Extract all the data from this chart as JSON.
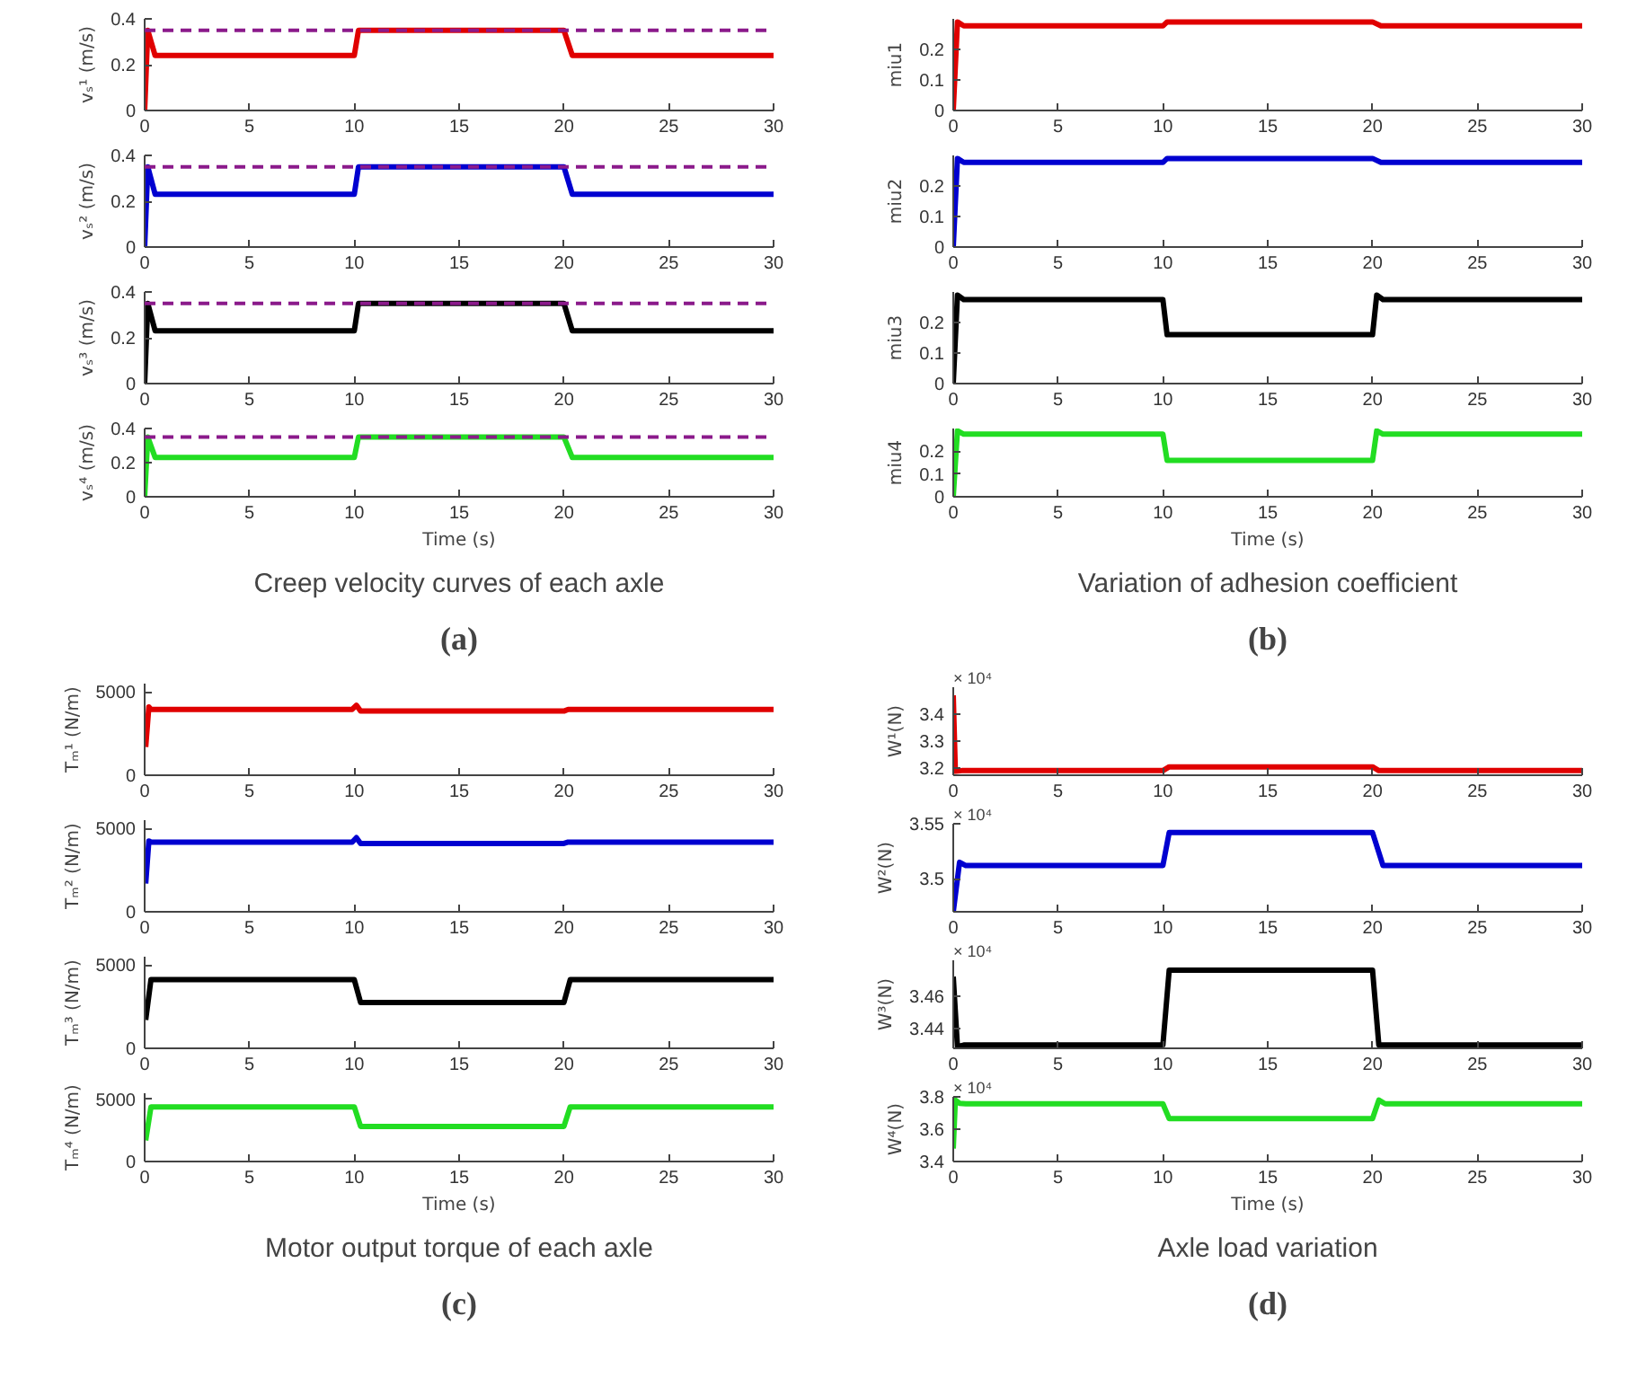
{
  "chart_data": [
    {
      "type": "line",
      "ylabel": "vₛ¹ (m/s)",
      "x": [
        0,
        0.15,
        0.5,
        10,
        10.2,
        20,
        20.4,
        30
      ],
      "series": [
        {
          "color": "#e00000",
          "values": [
            0,
            0.35,
            0.24,
            0.24,
            0.35,
            0.35,
            0.24,
            0.24
          ]
        }
      ],
      "xlim": [
        0,
        30
      ],
      "xticks": [
        0,
        5,
        10,
        15,
        20,
        25,
        30
      ],
      "ylim": [
        0,
        0.4
      ],
      "yticks": [
        0,
        0.2,
        0.4
      ],
      "ref_lines": [
        {
          "axis": "y",
          "value": 0.35,
          "color": "#8b1a8b",
          "line_style": "dashed"
        }
      ]
    },
    {
      "type": "line",
      "ylabel": "vₛ² (m/s)",
      "x": [
        0,
        0.15,
        0.5,
        10,
        10.2,
        20,
        20.4,
        30
      ],
      "series": [
        {
          "color": "#0000d0",
          "values": [
            0,
            0.35,
            0.23,
            0.23,
            0.35,
            0.35,
            0.23,
            0.23
          ]
        }
      ],
      "xlim": [
        0,
        30
      ],
      "xticks": [
        0,
        5,
        10,
        15,
        20,
        25,
        30
      ],
      "ylim": [
        0,
        0.4
      ],
      "yticks": [
        0,
        0.2,
        0.4
      ],
      "ref_lines": [
        {
          "axis": "y",
          "value": 0.35,
          "color": "#8b1a8b",
          "line_style": "dashed"
        }
      ]
    },
    {
      "type": "line",
      "ylabel": "vₛ³ (m/s)",
      "x": [
        0,
        0.15,
        0.5,
        10,
        10.2,
        20,
        20.4,
        30
      ],
      "series": [
        {
          "color": "#000000",
          "values": [
            0,
            0.35,
            0.23,
            0.23,
            0.35,
            0.35,
            0.23,
            0.23
          ]
        }
      ],
      "xlim": [
        0,
        30
      ],
      "xticks": [
        0,
        5,
        10,
        15,
        20,
        25,
        30
      ],
      "ylim": [
        0,
        0.4
      ],
      "yticks": [
        0,
        0.2,
        0.4
      ],
      "ref_lines": [
        {
          "axis": "y",
          "value": 0.35,
          "color": "#8b1a8b",
          "line_style": "dashed"
        }
      ]
    },
    {
      "type": "line",
      "ylabel": "vₛ⁴ (m/s)",
      "xlabel": "Time (s)",
      "subtitle": "Creep velocity curves of each axle",
      "title": "(a)",
      "x": [
        0,
        0.15,
        0.5,
        10,
        10.2,
        20,
        20.4,
        30
      ],
      "series": [
        {
          "color": "#22dd22",
          "values": [
            0,
            0.35,
            0.23,
            0.23,
            0.35,
            0.35,
            0.23,
            0.23
          ]
        }
      ],
      "xlim": [
        0,
        30
      ],
      "xticks": [
        0,
        5,
        10,
        15,
        20,
        25,
        30
      ],
      "ylim": [
        0,
        0.4
      ],
      "yticks": [
        0,
        0.2,
        0.4
      ],
      "ref_lines": [
        {
          "axis": "y",
          "value": 0.35,
          "color": "#8b1a8b",
          "line_style": "dashed"
        }
      ]
    },
    {
      "type": "line",
      "ylabel": "miu1",
      "x": [
        0,
        0.2,
        0.5,
        10,
        10.2,
        20,
        20.4,
        30
      ],
      "series": [
        {
          "color": "#e00000",
          "values": [
            0,
            0.29,
            0.277,
            0.277,
            0.29,
            0.29,
            0.277,
            0.277
          ]
        }
      ],
      "xlim": [
        0,
        30
      ],
      "xticks": [
        0,
        5,
        10,
        15,
        20,
        25,
        30
      ],
      "ylim": [
        0,
        0.3
      ],
      "yticks": [
        0,
        0.1,
        0.2
      ]
    },
    {
      "type": "line",
      "ylabel": "miu2",
      "x": [
        0,
        0.2,
        0.5,
        10,
        10.2,
        20,
        20.4,
        30
      ],
      "series": [
        {
          "color": "#0000d0",
          "values": [
            0,
            0.29,
            0.277,
            0.277,
            0.29,
            0.29,
            0.277,
            0.277
          ]
        }
      ],
      "xlim": [
        0,
        30
      ],
      "xticks": [
        0,
        5,
        10,
        15,
        20,
        25,
        30
      ],
      "ylim": [
        0,
        0.3
      ],
      "yticks": [
        0,
        0.1,
        0.2
      ]
    },
    {
      "type": "line",
      "ylabel": "miu3",
      "x": [
        0,
        0.2,
        0.5,
        10,
        10.2,
        20,
        20.2,
        20.5,
        30
      ],
      "series": [
        {
          "color": "#000000",
          "values": [
            0,
            0.29,
            0.275,
            0.275,
            0.16,
            0.16,
            0.29,
            0.275,
            0.275
          ]
        }
      ],
      "xlim": [
        0,
        30
      ],
      "xticks": [
        0,
        5,
        10,
        15,
        20,
        25,
        30
      ],
      "ylim": [
        0,
        0.3
      ],
      "yticks": [
        0,
        0.1,
        0.2
      ]
    },
    {
      "type": "line",
      "ylabel": "miu4",
      "xlabel": "Time (s)",
      "subtitle": "Variation of adhesion coefficient",
      "title": "(b)",
      "x": [
        0,
        0.2,
        0.5,
        10,
        10.2,
        20,
        20.2,
        20.5,
        30
      ],
      "series": [
        {
          "color": "#22dd22",
          "values": [
            0,
            0.29,
            0.275,
            0.275,
            0.16,
            0.16,
            0.29,
            0.275,
            0.275
          ]
        }
      ],
      "xlim": [
        0,
        30
      ],
      "xticks": [
        0,
        5,
        10,
        15,
        20,
        25,
        30
      ],
      "ylim": [
        0,
        0.3
      ],
      "yticks": [
        0,
        0.1,
        0.2
      ]
    },
    {
      "type": "line",
      "ylabel": "Tₘ¹ (N/m)",
      "x": [
        0.05,
        0.2,
        0.3,
        9.9,
        10.1,
        10.3,
        20,
        20.2,
        30
      ],
      "series": [
        {
          "color": "#e00000",
          "values": [
            1700,
            4100,
            3950,
            3950,
            4200,
            3850,
            3850,
            3950,
            3950
          ]
        }
      ],
      "xlim": [
        0,
        30
      ],
      "xticks": [
        0,
        5,
        10,
        15,
        20,
        25,
        30
      ],
      "ylim": [
        0,
        5500
      ],
      "yticks": [
        0,
        5000
      ]
    },
    {
      "type": "line",
      "ylabel": "Tₘ² (N/m)",
      "x": [
        0.05,
        0.2,
        0.3,
        9.9,
        10.1,
        10.3,
        20,
        20.2,
        30
      ],
      "series": [
        {
          "color": "#0000d0",
          "values": [
            1700,
            4250,
            4180,
            4180,
            4450,
            4100,
            4100,
            4180,
            4180
          ]
        }
      ],
      "xlim": [
        0,
        30
      ],
      "xticks": [
        0,
        5,
        10,
        15,
        20,
        25,
        30
      ],
      "ylim": [
        0,
        5500
      ],
      "yticks": [
        0,
        5000
      ]
    },
    {
      "type": "line",
      "ylabel": "Tₘ³ (N/m)",
      "x": [
        0.05,
        0.3,
        10,
        10.3,
        20,
        20.3,
        30
      ],
      "series": [
        {
          "color": "#000000",
          "values": [
            1700,
            4120,
            4120,
            2750,
            2750,
            4120,
            4120
          ]
        }
      ],
      "xlim": [
        0,
        30
      ],
      "xticks": [
        0,
        5,
        10,
        15,
        20,
        25,
        30
      ],
      "ylim": [
        0,
        5500
      ],
      "yticks": [
        0,
        5000
      ]
    },
    {
      "type": "line",
      "ylabel": "Tₘ⁴ (N/m)",
      "xlabel": "Time (s)",
      "subtitle": "Motor output torque of each axle",
      "title": "(c)",
      "x": [
        0.05,
        0.3,
        10,
        10.3,
        20,
        20.3,
        30
      ],
      "series": [
        {
          "color": "#22dd22",
          "values": [
            1700,
            4400,
            4400,
            2830,
            2830,
            4400,
            4400
          ]
        }
      ],
      "xlim": [
        0,
        30
      ],
      "xticks": [
        0,
        5,
        10,
        15,
        20,
        25,
        30
      ],
      "ylim": [
        0,
        5500
      ],
      "yticks": [
        0,
        5000
      ]
    },
    {
      "type": "line",
      "ylabel": "W¹(N)",
      "annotations": [
        "× 10⁴"
      ],
      "x": [
        0,
        0.1,
        0.4,
        10,
        10.3,
        20,
        20.3,
        30
      ],
      "series": [
        {
          "color": "#e00000",
          "values": [
            3.47,
            3.19,
            3.192,
            3.192,
            3.206,
            3.206,
            3.192,
            3.192
          ]
        }
      ],
      "xlim": [
        0,
        30
      ],
      "xticks": [
        0,
        5,
        10,
        15,
        20,
        25,
        30
      ],
      "ylim": [
        3.175,
        3.5
      ],
      "yticks": [
        3.2,
        3.3,
        3.4
      ]
    },
    {
      "type": "line",
      "ylabel": "W²(N)",
      "annotations": [
        "× 10⁴"
      ],
      "x": [
        0,
        0.3,
        0.6,
        10,
        10.3,
        20,
        20.5,
        30
      ],
      "series": [
        {
          "color": "#0000d0",
          "values": [
            3.47,
            3.515,
            3.512,
            3.512,
            3.542,
            3.542,
            3.512,
            3.512
          ]
        }
      ],
      "xlim": [
        0,
        30
      ],
      "xticks": [
        0,
        5,
        10,
        15,
        20,
        25,
        30
      ],
      "ylim": [
        3.47,
        3.55
      ],
      "yticks": [
        3.5,
        3.55
      ]
    },
    {
      "type": "line",
      "ylabel": "W³(N)",
      "annotations": [
        "× 10⁴"
      ],
      "x": [
        0,
        0.2,
        0.5,
        10,
        10.3,
        20,
        20.3,
        30
      ],
      "series": [
        {
          "color": "#000000",
          "values": [
            3.472,
            3.429,
            3.43,
            3.43,
            3.476,
            3.476,
            3.43,
            3.43
          ]
        }
      ],
      "xlim": [
        0,
        30
      ],
      "xticks": [
        0,
        5,
        10,
        15,
        20,
        25,
        30
      ],
      "ylim": [
        3.428,
        3.482
      ],
      "yticks": [
        3.44,
        3.46
      ]
    },
    {
      "type": "line",
      "ylabel": "W⁴(N)",
      "annotations": [
        "× 10⁴"
      ],
      "xlabel": "Time (s)",
      "subtitle": "Axle load variation",
      "title": "(d)",
      "x": [
        0,
        0.1,
        0.3,
        0.6,
        10,
        10.3,
        20,
        20.3,
        20.6,
        30
      ],
      "series": [
        {
          "color": "#22dd22",
          "values": [
            3.48,
            3.78,
            3.76,
            3.757,
            3.757,
            3.665,
            3.665,
            3.78,
            3.757,
            3.757
          ]
        }
      ],
      "xlim": [
        0,
        30
      ],
      "xticks": [
        0,
        5,
        10,
        15,
        20,
        25,
        30
      ],
      "ylim": [
        3.4,
        3.8
      ],
      "yticks": [
        3.4,
        3.6,
        3.8
      ]
    }
  ]
}
